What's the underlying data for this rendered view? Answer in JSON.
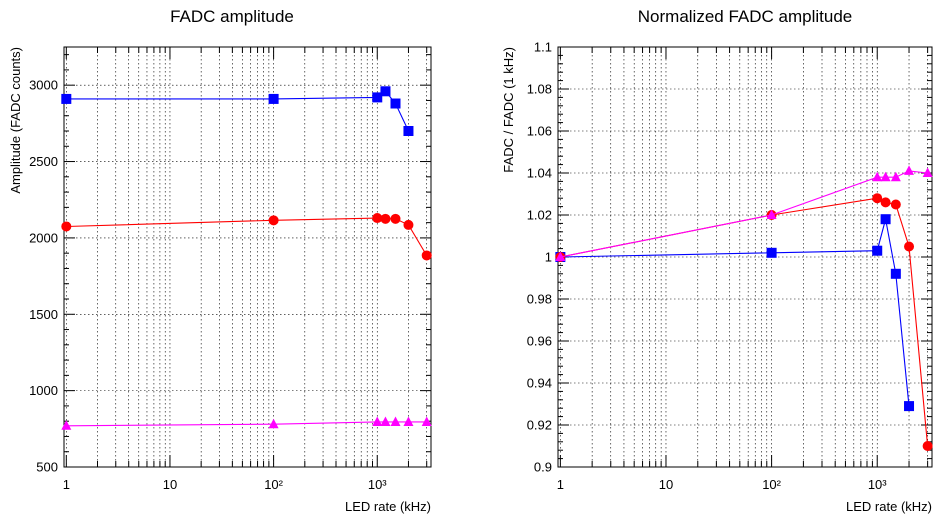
{
  "chart_data": [
    {
      "type": "line",
      "title": "FADC amplitude",
      "xlabel": "LED rate (kHz)",
      "ylabel": "Amplitude (FADC counts)",
      "xscale": "log",
      "xlim": [
        0.95,
        3300
      ],
      "ylim": [
        500,
        3250
      ],
      "grid": true,
      "x_tick_labels": [
        "1",
        "10",
        "10²",
        "10³"
      ],
      "y_tick_labels": [
        "500",
        "1000",
        "1500",
        "2000",
        "2500",
        "3000"
      ],
      "series": [
        {
          "color": "#0000ff",
          "marker": "square",
          "x": [
            1,
            100,
            1000,
            1200,
            1500,
            2000
          ],
          "y": [
            2910,
            2910,
            2920,
            2960,
            2880,
            2700
          ]
        },
        {
          "color": "#ff0000",
          "marker": "circle",
          "x": [
            1,
            100,
            1000,
            1200,
            1500,
            2000,
            3000
          ],
          "y": [
            2075,
            2115,
            2130,
            2125,
            2125,
            2085,
            1885
          ]
        },
        {
          "color": "#ff00ff",
          "marker": "triangle",
          "x": [
            1,
            100,
            1000,
            1200,
            1500,
            2000,
            3000
          ],
          "y": [
            770,
            780,
            795,
            795,
            795,
            795,
            795
          ]
        }
      ]
    },
    {
      "type": "line",
      "title": "Normalized FADC amplitude",
      "xlabel": "LED rate (kHz)",
      "ylabel": "FADC / FADC (1 kHz)",
      "xscale": "log",
      "xlim": [
        0.95,
        3300
      ],
      "ylim": [
        0.9,
        1.1
      ],
      "grid": true,
      "x_tick_labels": [
        "1",
        "10",
        "10²",
        "10³"
      ],
      "y_tick_labels": [
        "0.9",
        "0.92",
        "0.94",
        "0.96",
        "0.98",
        "1",
        "1.02",
        "1.04",
        "1.06",
        "1.08",
        "1.1"
      ],
      "series": [
        {
          "color": "#0000ff",
          "marker": "square",
          "x": [
            1,
            100,
            1000,
            1200,
            1500,
            2000
          ],
          "y": [
            1.0,
            1.002,
            1.003,
            1.018,
            0.992,
            0.929
          ]
        },
        {
          "color": "#ff0000",
          "marker": "circle",
          "x": [
            1,
            100,
            1000,
            1200,
            1500,
            2000,
            3000
          ],
          "y": [
            1.0,
            1.02,
            1.028,
            1.026,
            1.025,
            1.005,
            0.91
          ]
        },
        {
          "color": "#ff00ff",
          "marker": "triangle",
          "x": [
            1,
            100,
            1000,
            1200,
            1500,
            2000,
            3000
          ],
          "y": [
            1.0,
            1.02,
            1.038,
            1.038,
            1.038,
            1.041,
            1.04
          ]
        }
      ]
    }
  ]
}
